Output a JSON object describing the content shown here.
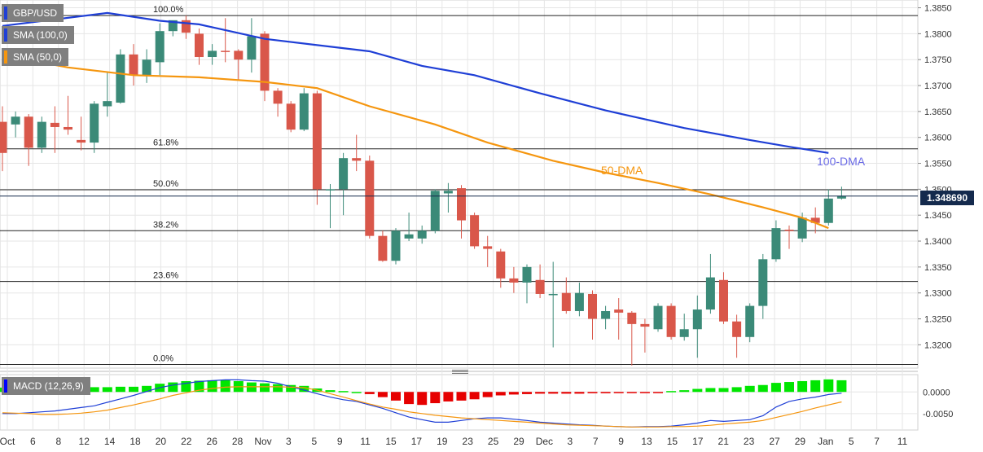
{
  "legend": {
    "symbol": "GBP/USD",
    "sma100": "SMA (100,0)",
    "sma50": "SMA (50,0)",
    "macd": "MACD (12,26,9)"
  },
  "colors": {
    "up": "#3b8a78",
    "down": "#d9574a",
    "sma100": "#1f3fd6",
    "sma50": "#f5960f",
    "macd_line": "#1f3fd6",
    "signal_line": "#f5960f",
    "hist_pos": "#00e600",
    "hist_neg": "#e60000",
    "grid": "#e6e6e6",
    "price_tag_bg": "#142a4d"
  },
  "current_price": "1.348690",
  "annotations": {
    "sma50_label": "50-DMA",
    "sma100_label": "100-DMA"
  },
  "chart_data": [
    {
      "type": "candlestick",
      "title": "GBP/USD",
      "y_axis": {
        "ticks": [
          "1.3850",
          "1.3800",
          "1.3750",
          "1.3700",
          "1.3650",
          "1.3600",
          "1.3550",
          "1.3500",
          "1.3450",
          "1.3400",
          "1.3350",
          "1.3300",
          "1.3250",
          "1.3200"
        ],
        "range": [
          1.3155,
          1.3865
        ]
      },
      "x_axis": {
        "ticks": [
          "Oct",
          "6",
          "8",
          "12",
          "14",
          "18",
          "20",
          "22",
          "26",
          "28",
          "Nov",
          "3",
          "5",
          "9",
          "11",
          "15",
          "17",
          "19",
          "23",
          "25",
          "29",
          "Dec",
          "3",
          "7",
          "9",
          "13",
          "15",
          "17",
          "21",
          "23",
          "27",
          "29",
          "Jan",
          "5",
          "7",
          "11"
        ]
      },
      "fibonacci": [
        {
          "label": "100.0%",
          "price": 1.3835
        },
        {
          "label": "61.8%",
          "price": 1.3578
        },
        {
          "label": "50.0%",
          "price": 1.3499
        },
        {
          "label": "38.2%",
          "price": 1.342
        },
        {
          "label": "23.6%",
          "price": 1.3322
        },
        {
          "label": "0.0%",
          "price": 1.3162
        }
      ],
      "candles": [
        {
          "o": 1.363,
          "h": 1.366,
          "l": 1.3535,
          "c": 1.357
        },
        {
          "o": 1.3625,
          "h": 1.365,
          "l": 1.36,
          "c": 1.364
        },
        {
          "o": 1.364,
          "h": 1.3645,
          "l": 1.3545,
          "c": 1.358
        },
        {
          "o": 1.358,
          "h": 1.364,
          "l": 1.357,
          "c": 1.363
        },
        {
          "o": 1.3628,
          "h": 1.366,
          "l": 1.357,
          "c": 1.362
        },
        {
          "o": 1.362,
          "h": 1.368,
          "l": 1.3605,
          "c": 1.3615
        },
        {
          "o": 1.3595,
          "h": 1.364,
          "l": 1.3575,
          "c": 1.359
        },
        {
          "o": 1.359,
          "h": 1.367,
          "l": 1.357,
          "c": 1.3665
        },
        {
          "o": 1.366,
          "h": 1.3725,
          "l": 1.364,
          "c": 1.367
        },
        {
          "o": 1.3667,
          "h": 1.377,
          "l": 1.3665,
          "c": 1.376
        },
        {
          "o": 1.376,
          "h": 1.378,
          "l": 1.37,
          "c": 1.372
        },
        {
          "o": 1.372,
          "h": 1.377,
          "l": 1.3705,
          "c": 1.375
        },
        {
          "o": 1.3745,
          "h": 1.382,
          "l": 1.372,
          "c": 1.3805
        },
        {
          "o": 1.3805,
          "h": 1.3825,
          "l": 1.3795,
          "c": 1.3826
        },
        {
          "o": 1.3826,
          "h": 1.3835,
          "l": 1.379,
          "c": 1.3802
        },
        {
          "o": 1.38,
          "h": 1.381,
          "l": 1.374,
          "c": 1.3755
        },
        {
          "o": 1.3755,
          "h": 1.378,
          "l": 1.374,
          "c": 1.3767
        },
        {
          "o": 1.3767,
          "h": 1.383,
          "l": 1.3745,
          "c": 1.3765
        },
        {
          "o": 1.3767,
          "h": 1.377,
          "l": 1.371,
          "c": 1.375
        },
        {
          "o": 1.375,
          "h": 1.383,
          "l": 1.3725,
          "c": 1.3795
        },
        {
          "o": 1.38,
          "h": 1.3805,
          "l": 1.367,
          "c": 1.369
        },
        {
          "o": 1.369,
          "h": 1.3695,
          "l": 1.364,
          "c": 1.3665
        },
        {
          "o": 1.3665,
          "h": 1.367,
          "l": 1.361,
          "c": 1.3615
        },
        {
          "o": 1.3615,
          "h": 1.3695,
          "l": 1.3612,
          "c": 1.3685
        },
        {
          "o": 1.3685,
          "h": 1.369,
          "l": 1.347,
          "c": 1.35
        },
        {
          "o": 1.35,
          "h": 1.351,
          "l": 1.3425,
          "c": 1.35
        },
        {
          "o": 1.35,
          "h": 1.357,
          "l": 1.345,
          "c": 1.356
        },
        {
          "o": 1.356,
          "h": 1.3605,
          "l": 1.3535,
          "c": 1.3555
        },
        {
          "o": 1.3555,
          "h": 1.3565,
          "l": 1.3405,
          "c": 1.341
        },
        {
          "o": 1.341,
          "h": 1.342,
          "l": 1.336,
          "c": 1.3362
        },
        {
          "o": 1.3362,
          "h": 1.3425,
          "l": 1.3355,
          "c": 1.342
        },
        {
          "o": 1.3405,
          "h": 1.3455,
          "l": 1.34,
          "c": 1.3413
        },
        {
          "o": 1.3405,
          "h": 1.343,
          "l": 1.3395,
          "c": 1.342
        },
        {
          "o": 1.342,
          "h": 1.35,
          "l": 1.3415,
          "c": 1.3497
        },
        {
          "o": 1.3492,
          "h": 1.3512,
          "l": 1.3455,
          "c": 1.3497
        },
        {
          "o": 1.3502,
          "h": 1.3508,
          "l": 1.3405,
          "c": 1.344
        },
        {
          "o": 1.345,
          "h": 1.3455,
          "l": 1.3385,
          "c": 1.339
        },
        {
          "o": 1.339,
          "h": 1.341,
          "l": 1.335,
          "c": 1.3385
        },
        {
          "o": 1.338,
          "h": 1.3385,
          "l": 1.331,
          "c": 1.3328
        },
        {
          "o": 1.3328,
          "h": 1.335,
          "l": 1.33,
          "c": 1.332
        },
        {
          "o": 1.332,
          "h": 1.3355,
          "l": 1.328,
          "c": 1.335
        },
        {
          "o": 1.3325,
          "h": 1.3355,
          "l": 1.329,
          "c": 1.3298
        },
        {
          "o": 1.3298,
          "h": 1.336,
          "l": 1.3195,
          "c": 1.3298
        },
        {
          "o": 1.33,
          "h": 1.333,
          "l": 1.326,
          "c": 1.3265
        },
        {
          "o": 1.3265,
          "h": 1.332,
          "l": 1.3255,
          "c": 1.33
        },
        {
          "o": 1.3298,
          "h": 1.3305,
          "l": 1.321,
          "c": 1.325
        },
        {
          "o": 1.325,
          "h": 1.3275,
          "l": 1.323,
          "c": 1.3265
        },
        {
          "o": 1.3268,
          "h": 1.329,
          "l": 1.321,
          "c": 1.3262
        },
        {
          "o": 1.3262,
          "h": 1.3265,
          "l": 1.316,
          "c": 1.324
        },
        {
          "o": 1.324,
          "h": 1.325,
          "l": 1.3185,
          "c": 1.3235
        },
        {
          "o": 1.323,
          "h": 1.328,
          "l": 1.3225,
          "c": 1.3275
        },
        {
          "o": 1.3275,
          "h": 1.328,
          "l": 1.321,
          "c": 1.3215
        },
        {
          "o": 1.3215,
          "h": 1.326,
          "l": 1.3208,
          "c": 1.323
        },
        {
          "o": 1.323,
          "h": 1.3295,
          "l": 1.3175,
          "c": 1.3268
        },
        {
          "o": 1.3268,
          "h": 1.3375,
          "l": 1.326,
          "c": 1.333
        },
        {
          "o": 1.3325,
          "h": 1.334,
          "l": 1.324,
          "c": 1.3245
        },
        {
          "o": 1.3245,
          "h": 1.3258,
          "l": 1.3175,
          "c": 1.3215
        },
        {
          "o": 1.3215,
          "h": 1.328,
          "l": 1.3205,
          "c": 1.3275
        },
        {
          "o": 1.3275,
          "h": 1.3375,
          "l": 1.325,
          "c": 1.3365
        },
        {
          "o": 1.3365,
          "h": 1.344,
          "l": 1.336,
          "c": 1.3425
        },
        {
          "o": 1.3422,
          "h": 1.343,
          "l": 1.3385,
          "c": 1.342
        },
        {
          "o": 1.3405,
          "h": 1.3455,
          "l": 1.3398,
          "c": 1.3445
        },
        {
          "o": 1.3445,
          "h": 1.3465,
          "l": 1.3415,
          "c": 1.3435
        },
        {
          "o": 1.3435,
          "h": 1.35,
          "l": 1.343,
          "c": 1.3482
        },
        {
          "o": 1.3482,
          "h": 1.3505,
          "l": 1.348,
          "c": 1.3487
        }
      ],
      "series": [
        {
          "name": "SMA (100,0)",
          "points": [
            [
              0,
              1.3815
            ],
            [
              8,
              1.384
            ],
            [
              12,
              1.3825
            ],
            [
              15,
              1.3818
            ],
            [
              20,
              1.379
            ],
            [
              28,
              1.3766
            ],
            [
              32,
              1.3738
            ],
            [
              36,
              1.372
            ],
            [
              41,
              1.3685
            ],
            [
              46,
              1.3652
            ],
            [
              52,
              1.3618
            ],
            [
              57,
              1.3595
            ],
            [
              60,
              1.3582
            ],
            [
              63,
              1.357
            ]
          ]
        },
        {
          "name": "SMA (50,0)",
          "points": [
            [
              0,
              1.3758
            ],
            [
              5,
              1.3735
            ],
            [
              10,
              1.372
            ],
            [
              15,
              1.3716
            ],
            [
              20,
              1.3707
            ],
            [
              24,
              1.3695
            ],
            [
              28,
              1.366
            ],
            [
              33,
              1.3625
            ],
            [
              37,
              1.359
            ],
            [
              42,
              1.3555
            ],
            [
              46,
              1.3532
            ],
            [
              50,
              1.3512
            ],
            [
              54,
              1.349
            ],
            [
              58,
              1.3465
            ],
            [
              61,
              1.3445
            ],
            [
              63,
              1.3425
            ]
          ]
        }
      ]
    },
    {
      "type": "bar",
      "title": "MACD (12,26,9)",
      "y_axis": {
        "ticks": [
          "0.0000",
          "-0.0050"
        ],
        "range": [
          -0.0088,
          0.004
        ]
      },
      "histogram": [
        0.001,
        0.0009,
        0.0008,
        0.001,
        0.0012,
        0.0014,
        0.0012,
        0.0011,
        0.0011,
        0.0012,
        0.0012,
        0.0014,
        0.0019,
        0.0022,
        0.0025,
        0.0026,
        0.0027,
        0.0027,
        0.0025,
        0.0022,
        0.002,
        0.0018,
        0.0016,
        0.0014,
        0.0008,
        0.0004,
        0.0002,
        0.0,
        -0.0005,
        -0.0012,
        -0.002,
        -0.0028,
        -0.003,
        -0.0026,
        -0.0022,
        -0.002,
        -0.0017,
        -0.0012,
        -0.0008,
        -0.0006,
        -0.0005,
        -0.0004,
        -0.0004,
        -0.0004,
        -0.0004,
        -0.0003,
        -0.0003,
        -0.0002,
        -0.0002,
        -0.0001,
        -0.0001,
        0.0002,
        0.0004,
        0.0007,
        0.0009,
        0.0009,
        0.0011,
        0.0014,
        0.0016,
        0.0021,
        0.0023,
        0.0025,
        0.0027,
        0.0029,
        0.0027
      ],
      "series": [
        {
          "name": "MACD",
          "values": [
            -0.005,
            -0.005,
            -0.0048,
            -0.0046,
            -0.0044,
            -0.004,
            -0.0036,
            -0.0032,
            -0.0024,
            -0.0016,
            -0.0008,
            0.0001,
            0.001,
            0.0016,
            0.002,
            0.0024,
            0.0026,
            0.0028,
            0.0028,
            0.0026,
            0.0025,
            0.002,
            0.0012,
            0.0004,
            -0.0004,
            -0.0012,
            -0.0018,
            -0.0022,
            -0.003,
            -0.0038,
            -0.0048,
            -0.0058,
            -0.0064,
            -0.007,
            -0.007,
            -0.0066,
            -0.0062,
            -0.006,
            -0.006,
            -0.0063,
            -0.0066,
            -0.007,
            -0.0072,
            -0.0074,
            -0.0076,
            -0.0077,
            -0.0079,
            -0.008,
            -0.0081,
            -0.008,
            -0.008,
            -0.0079,
            -0.0076,
            -0.0072,
            -0.0066,
            -0.0068,
            -0.0066,
            -0.0064,
            -0.0055,
            -0.0035,
            -0.0022,
            -0.0016,
            -0.0012,
            -0.0006,
            -0.0003
          ]
        },
        {
          "name": "Signal",
          "values": [
            -0.0048,
            -0.0049,
            -0.005,
            -0.0052,
            -0.0052,
            -0.0051,
            -0.0049,
            -0.0046,
            -0.0042,
            -0.0036,
            -0.003,
            -0.0023,
            -0.0016,
            -0.0008,
            -0.0002,
            0.0004,
            0.0008,
            0.0011,
            0.0012,
            0.0012,
            0.0012,
            0.0012,
            0.0011,
            0.001,
            0.0004,
            -0.0004,
            -0.0012,
            -0.002,
            -0.0028,
            -0.0035,
            -0.004,
            -0.0046,
            -0.005,
            -0.0054,
            -0.0057,
            -0.006,
            -0.0062,
            -0.0064,
            -0.0066,
            -0.0068,
            -0.007,
            -0.0072,
            -0.0074,
            -0.0076,
            -0.0077,
            -0.0078,
            -0.0079,
            -0.008,
            -0.0081,
            -0.0081,
            -0.0081,
            -0.008,
            -0.008,
            -0.0079,
            -0.0077,
            -0.0074,
            -0.0072,
            -0.007,
            -0.0066,
            -0.0059,
            -0.0052,
            -0.0045,
            -0.0037,
            -0.003,
            -0.0023
          ]
        }
      ]
    }
  ]
}
